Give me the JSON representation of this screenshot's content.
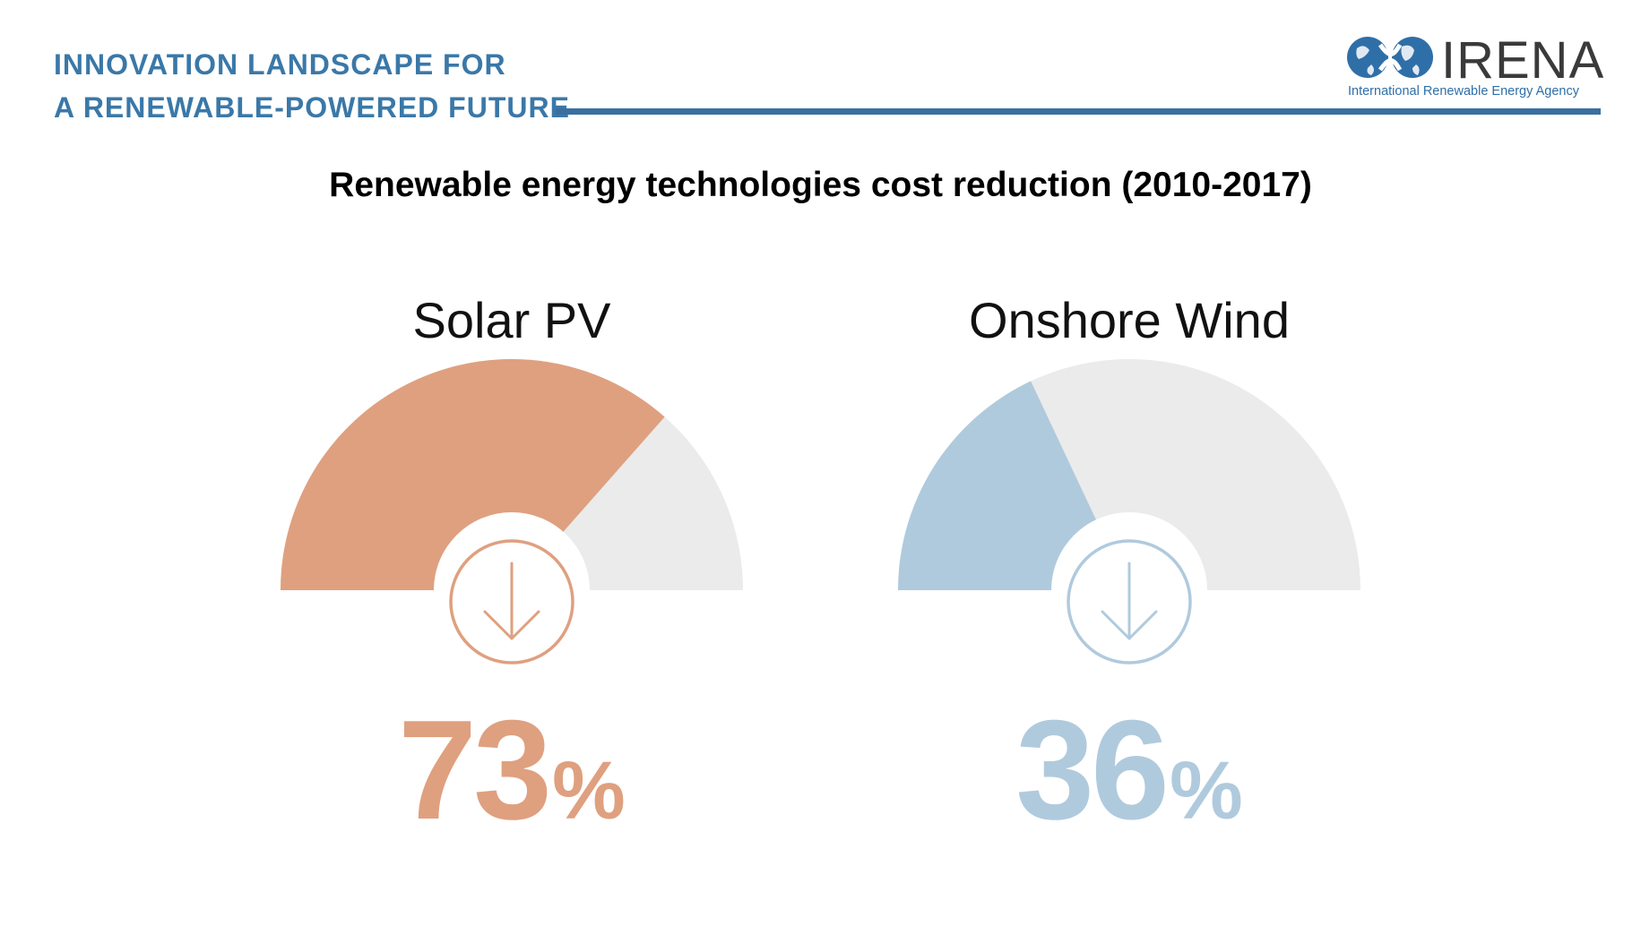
{
  "header": {
    "line1": "INNOVATION LANDSCAPE FOR",
    "line2": "A RENEWABLE-POWERED FUTURE",
    "accent_color": "#3a78a8"
  },
  "logo": {
    "wordmark": "IRENA",
    "subtitle": "International Renewable Energy Agency"
  },
  "chart_data": {
    "type": "gauge",
    "title": "Renewable energy technologies cost reduction (2010-2017)",
    "unit": "%",
    "series": [
      {
        "name": "Solar PV",
        "value": 73,
        "display": "73",
        "color": "#dfa07f"
      },
      {
        "name": "Onshore Wind",
        "value": 36,
        "display": "36",
        "color": "#b0cadd"
      }
    ],
    "range": [
      0,
      100
    ],
    "track_color": "#ebebeb",
    "icon": "arrow-down-icon"
  }
}
